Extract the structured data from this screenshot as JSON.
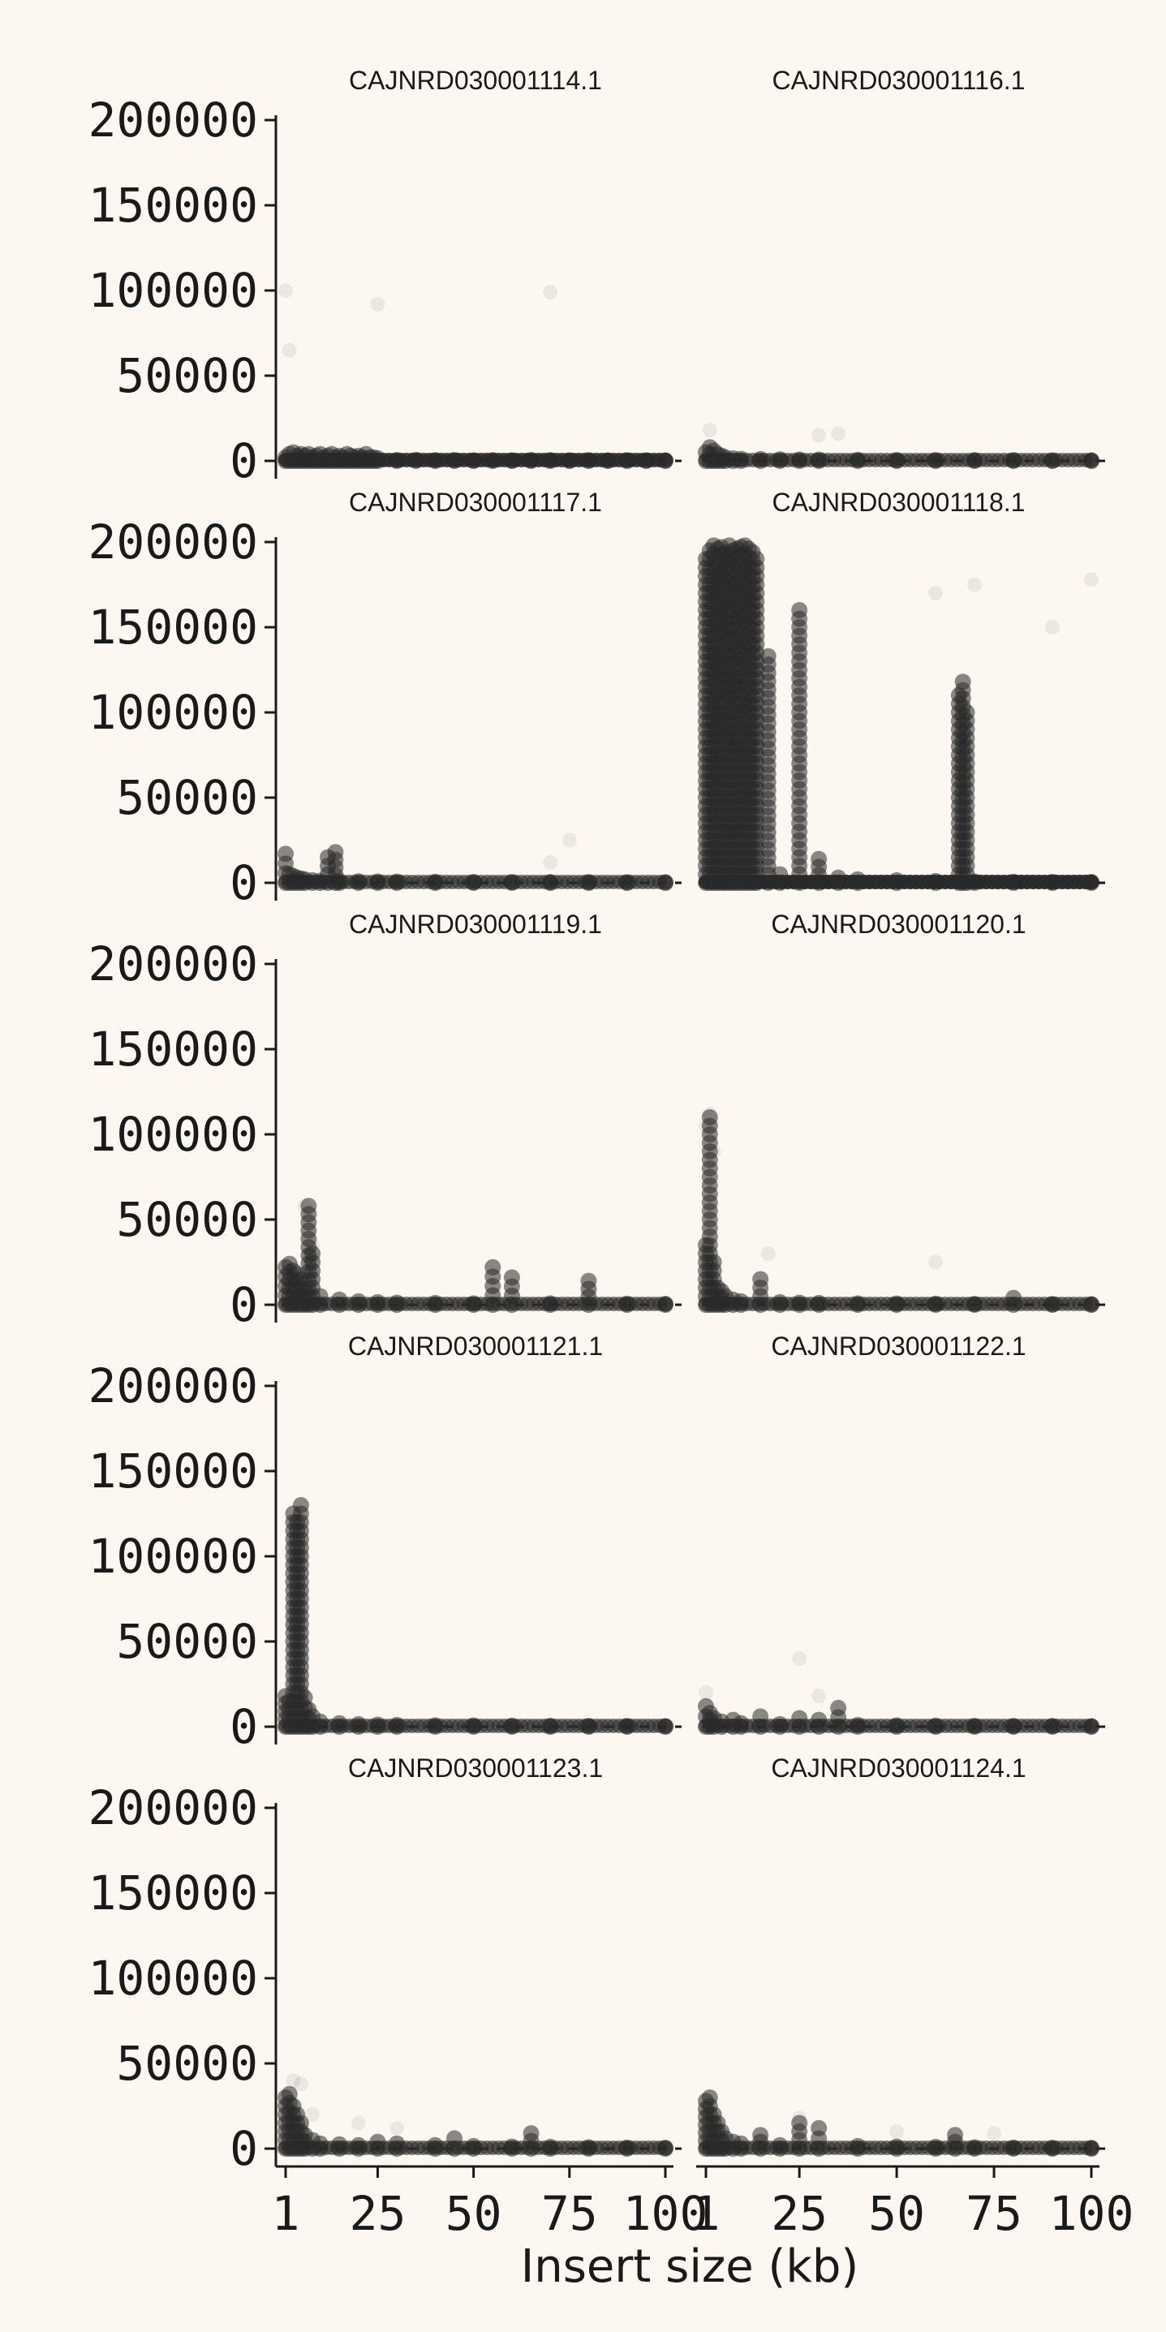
{
  "chart_data": {
    "type": "scatter",
    "layout": "facet-grid",
    "facet_columns": 2,
    "xlabel": "Insert size (kb)",
    "ylabel": "",
    "xlim": [
      0,
      100
    ],
    "ylim": [
      0,
      200000
    ],
    "x_ticks": [
      1,
      25,
      50,
      75,
      100
    ],
    "y_ticks": [
      0,
      50000,
      100000,
      150000,
      200000
    ],
    "grid": false,
    "zero_reference_line": "dashed",
    "point_color": "#2a2a2a",
    "background": "#fcf8f1",
    "panels": [
      {
        "title": "CAJNRD030001114.1",
        "series": [
          {
            "x": [
              1,
              2,
              3,
              4,
              5,
              6,
              7,
              8,
              9,
              10,
              11,
              12,
              13,
              14,
              15,
              16,
              17,
              18,
              19,
              20,
              21,
              22,
              23,
              24,
              25
            ],
            "y": [
              2000,
              4000,
              5000,
              3000,
              4000,
              3000,
              4000,
              2000,
              3000,
              4000,
              2000,
              3000,
              4000,
              2000,
              3000,
              2000,
              4000,
              3000,
              2000,
              3000,
              2000,
              4000,
              2000,
              2000,
              1500
            ]
          },
          {
            "x": [
              30,
              35,
              40,
              45,
              50,
              55,
              60,
              65,
              70,
              75,
              80,
              85,
              90,
              95,
              100
            ],
            "y": [
              500,
              600,
              400,
              500,
              300,
              400,
              300,
              500,
              400,
              300,
              400,
              300,
              400,
              300,
              300
            ]
          }
        ],
        "outliers": {
          "x": [
            1,
            2,
            25,
            70
          ],
          "y": [
            100000,
            65000,
            92000,
            99000
          ]
        }
      },
      {
        "title": "CAJNRD030001116.1",
        "series": [
          {
            "x": [
              1,
              2,
              3,
              4,
              5,
              6,
              8,
              10,
              15,
              20,
              25,
              30,
              40,
              50,
              60,
              70,
              80,
              90,
              100
            ],
            "y": [
              5000,
              8000,
              6000,
              4000,
              3000,
              2000,
              1500,
              1200,
              1000,
              900,
              800,
              700,
              600,
              500,
              500,
              400,
              400,
              300,
              300
            ]
          }
        ],
        "outliers": {
          "x": [
            2,
            30,
            35
          ],
          "y": [
            18000,
            15000,
            16000
          ]
        }
      },
      {
        "title": "CAJNRD030001117.1",
        "series": [
          {
            "x": [
              1,
              2,
              3,
              4,
              5,
              6,
              8,
              10,
              12,
              14,
              15,
              20,
              25,
              30,
              40,
              50,
              60,
              70,
              80,
              90,
              100
            ],
            "y": [
              17000,
              5000,
              4000,
              3000,
              2500,
              2000,
              1500,
              1200,
              15000,
              18000,
              1000,
              900,
              800,
              700,
              600,
              500,
              500,
              400,
              400,
              300,
              300
            ]
          }
        ],
        "outliers": {
          "x": [
            70,
            75
          ],
          "y": [
            12000,
            25000
          ]
        }
      },
      {
        "title": "CAJNRD030001118.1",
        "series": [
          {
            "x": [
              1,
              2,
              3,
              4,
              5,
              6,
              7,
              8,
              9,
              10,
              11,
              12,
              13,
              14
            ],
            "y": [
              190000,
              195000,
              198000,
              196000,
              197000,
              194000,
              198000,
              195000,
              196000,
              197000,
              198000,
              196000,
              194000,
              190000
            ]
          },
          {
            "x": [
              17,
              20,
              25,
              30,
              35,
              40,
              50,
              60,
              70,
              80,
              90,
              100
            ],
            "y": [
              133000,
              5000,
              160000,
              14000,
              3000,
              2000,
              1500,
              1000,
              800,
              600,
              500,
              500
            ]
          },
          {
            "x": [
              66,
              67,
              68
            ],
            "y": [
              110000,
              118000,
              100000
            ]
          }
        ],
        "outliers": {
          "x": [
            60,
            70,
            90,
            100
          ],
          "y": [
            170000,
            175000,
            150000,
            178000
          ]
        }
      },
      {
        "title": "CAJNRD030001119.1",
        "series": [
          {
            "x": [
              1,
              2,
              3,
              4,
              5,
              6,
              7,
              8,
              10,
              15,
              20,
              25,
              30,
              40,
              50,
              55,
              60,
              70,
              80,
              90,
              100
            ],
            "y": [
              22000,
              24000,
              20000,
              18000,
              15000,
              8000,
              58000,
              30000,
              5000,
              3000,
              2000,
              1500,
              1200,
              1000,
              800,
              22000,
              16000,
              800,
              14000,
              600,
              500
            ]
          }
        ],
        "outliers": {
          "x": [
            6,
            8
          ],
          "y": [
            58000,
            35000
          ]
        }
      },
      {
        "title": "CAJNRD030001120.1",
        "series": [
          {
            "x": [
              1,
              2,
              3,
              4,
              5,
              6,
              8,
              10,
              15,
              20,
              25,
              30,
              40,
              50,
              60,
              70,
              80,
              90,
              100
            ],
            "y": [
              35000,
              110000,
              25000,
              10000,
              8000,
              5000,
              3000,
              2000,
              15000,
              1500,
              1200,
              1000,
              800,
              700,
              600,
              500,
              4000,
              400,
              300
            ]
          }
        ],
        "outliers": {
          "x": [
            1,
            2,
            3,
            17,
            60
          ],
          "y": [
            105000,
            112000,
            90000,
            30000,
            25000
          ]
        }
      },
      {
        "title": "CAJNRD030001121.1",
        "series": [
          {
            "x": [
              1,
              2,
              3,
              4,
              5,
              6,
              7,
              8,
              10,
              15,
              20,
              25,
              30,
              40,
              50,
              60,
              70,
              80,
              90,
              100
            ],
            "y": [
              18000,
              15000,
              125000,
              120000,
              130000,
              17000,
              10000,
              6000,
              3000,
              2000,
              1500,
              1200,
              1000,
              800,
              700,
              600,
              500,
              400,
              400,
              300
            ]
          }
        ],
        "outliers": {
          "x": [
            3,
            4,
            5
          ],
          "y": [
            60000,
            80000,
            100000
          ]
        }
      },
      {
        "title": "CAJNRD030001122.1",
        "series": [
          {
            "x": [
              1,
              2,
              3,
              5,
              8,
              10,
              15,
              20,
              25,
              30,
              35,
              40,
              50,
              60,
              70,
              80,
              90,
              100
            ],
            "y": [
              12000,
              8000,
              5000,
              3000,
              4000,
              2000,
              6000,
              1500,
              5000,
              4000,
              11000,
              1000,
              800,
              600,
              500,
              400,
              400,
              300
            ]
          }
        ],
        "outliers": {
          "x": [
            1,
            25,
            30
          ],
          "y": [
            20000,
            40000,
            18000
          ]
        }
      },
      {
        "title": "CAJNRD030001123.1",
        "series": [
          {
            "x": [
              1,
              2,
              3,
              4,
              5,
              6,
              8,
              10,
              15,
              20,
              25,
              30,
              40,
              45,
              50,
              60,
              65,
              70,
              80,
              90,
              100
            ],
            "y": [
              30000,
              32000,
              25000,
              20000,
              15000,
              8000,
              5000,
              3000,
              2500,
              2000,
              4000,
              3000,
              2000,
              6000,
              1500,
              1200,
              9000,
              1000,
              800,
              600,
              500
            ]
          }
        ],
        "outliers": {
          "x": [
            3,
            5,
            8,
            20,
            30
          ],
          "y": [
            40000,
            38000,
            20000,
            15000,
            12000
          ]
        }
      },
      {
        "title": "CAJNRD030001124.1",
        "series": [
          {
            "x": [
              1,
              2,
              3,
              4,
              5,
              6,
              8,
              10,
              15,
              20,
              25,
              30,
              40,
              50,
              60,
              65,
              70,
              80,
              90,
              100
            ],
            "y": [
              28000,
              30000,
              20000,
              15000,
              10000,
              6000,
              4000,
              3000,
              8000,
              2000,
              15000,
              12000,
              1500,
              1200,
              1000,
              8000,
              800,
              600,
              500,
              400
            ]
          }
        ],
        "outliers": {
          "x": [
            25,
            50,
            75
          ],
          "y": [
            18000,
            10000,
            9000
          ]
        }
      }
    ]
  }
}
